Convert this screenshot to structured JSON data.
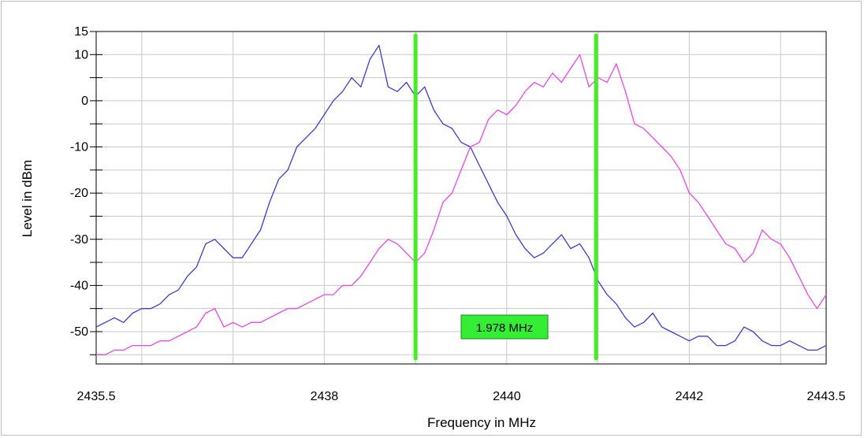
{
  "chart_data": {
    "type": "line",
    "xlabel": "Frequency in MHz",
    "ylabel": "Level in dBm",
    "xlim": [
      2435.5,
      2443.5
    ],
    "ylim": [
      -57,
      15
    ],
    "x_ticks": [
      2435.5,
      2438,
      2440,
      2442,
      2443.5
    ],
    "x_tick_labels": [
      "2435.5",
      "2438",
      "2440",
      "2442",
      "2443.5"
    ],
    "x_grid": [
      2435.5,
      2436,
      2437,
      2438,
      2439,
      2440,
      2441,
      2442,
      2443,
      2443.5
    ],
    "y_ticks": [
      15,
      10,
      0,
      -10,
      -20,
      -30,
      -40,
      -50
    ],
    "y_tick_labels": [
      "15",
      "10",
      "0",
      "-10",
      "-20",
      "-30",
      "-40",
      "-50"
    ],
    "y_grid": [
      15,
      10,
      5,
      0,
      -5,
      -10,
      -15,
      -20,
      -25,
      -30,
      -35,
      -40,
      -45,
      -50,
      -55
    ],
    "grid": true,
    "colors": {
      "series1": "#3a3ad8",
      "series2": "#ee44ee",
      "markers": "#44ee22",
      "label_bg": "#33ee33"
    },
    "markers": [
      2439.0,
      2440.978
    ],
    "annotation": "1.978 MHz",
    "series": [
      {
        "x": [
          2435.5,
          2435.6,
          2435.7,
          2435.8,
          2435.9,
          2436.0,
          2436.1,
          2436.2,
          2436.3,
          2436.4,
          2436.5,
          2436.6,
          2436.7,
          2436.8,
          2436.9,
          2437.0,
          2437.1,
          2437.2,
          2437.3,
          2437.4,
          2437.5,
          2437.6,
          2437.7,
          2437.8,
          2437.9,
          2438.0,
          2438.1,
          2438.2,
          2438.3,
          2438.4,
          2438.5,
          2438.6,
          2438.7,
          2438.8,
          2438.9,
          2439.0,
          2439.1,
          2439.2,
          2439.3,
          2439.4,
          2439.5,
          2439.6,
          2439.7,
          2439.8,
          2439.9,
          2440.0,
          2440.1,
          2440.2,
          2440.3,
          2440.4,
          2440.5,
          2440.6,
          2440.7,
          2440.8,
          2440.9,
          2441.0,
          2441.1,
          2441.2,
          2441.3,
          2441.4,
          2441.5,
          2441.6,
          2441.7,
          2441.8,
          2441.9,
          2442.0,
          2442.1,
          2442.2,
          2442.3,
          2442.4,
          2442.5,
          2442.6,
          2442.7,
          2442.8,
          2442.9,
          2443.0,
          2443.1,
          2443.2,
          2443.3,
          2443.4,
          2443.5
        ],
        "values": [
          -49,
          -48,
          -47,
          -48,
          -46,
          -45,
          -45,
          -44,
          -42,
          -41,
          -38,
          -36,
          -31,
          -30,
          -32,
          -34,
          -34,
          -31,
          -28,
          -22,
          -17,
          -15,
          -10,
          -8,
          -6,
          -3,
          0,
          2,
          5,
          3,
          9,
          12,
          3,
          2,
          4,
          1,
          3,
          -2,
          -5,
          -6,
          -9,
          -10,
          -14,
          -18,
          -22,
          -25,
          -29,
          -32,
          -34,
          -33,
          -31,
          -29,
          -32,
          -31,
          -34,
          -39,
          -42,
          -44,
          -47,
          -49,
          -48,
          -46,
          -49,
          -50,
          -51,
          -52,
          -51,
          -51,
          -53,
          -53,
          -52,
          -49,
          -50,
          -52,
          -53,
          -53,
          -52,
          -53,
          -54,
          -54,
          -53
        ]
      },
      {
        "x": [
          2435.5,
          2435.6,
          2435.7,
          2435.8,
          2435.9,
          2436.0,
          2436.1,
          2436.2,
          2436.3,
          2436.4,
          2436.5,
          2436.6,
          2436.7,
          2436.8,
          2436.9,
          2437.0,
          2437.1,
          2437.2,
          2437.3,
          2437.4,
          2437.5,
          2437.6,
          2437.7,
          2437.8,
          2437.9,
          2438.0,
          2438.1,
          2438.2,
          2438.3,
          2438.4,
          2438.5,
          2438.6,
          2438.7,
          2438.8,
          2438.9,
          2439.0,
          2439.1,
          2439.2,
          2439.3,
          2439.4,
          2439.5,
          2439.6,
          2439.7,
          2439.8,
          2439.9,
          2440.0,
          2440.1,
          2440.2,
          2440.3,
          2440.4,
          2440.5,
          2440.6,
          2440.7,
          2440.8,
          2440.9,
          2441.0,
          2441.1,
          2441.2,
          2441.3,
          2441.4,
          2441.5,
          2441.6,
          2441.7,
          2441.8,
          2441.9,
          2442.0,
          2442.1,
          2442.2,
          2442.3,
          2442.4,
          2442.5,
          2442.6,
          2442.7,
          2442.8,
          2442.9,
          2443.0,
          2443.1,
          2443.2,
          2443.3,
          2443.4,
          2443.5
        ],
        "values": [
          -55,
          -55,
          -54,
          -54,
          -53,
          -53,
          -53,
          -52,
          -52,
          -51,
          -50,
          -49,
          -46,
          -45,
          -49,
          -48,
          -49,
          -48,
          -48,
          -47,
          -46,
          -45,
          -45,
          -44,
          -43,
          -42,
          -42,
          -40,
          -40,
          -38,
          -35,
          -32,
          -30,
          -31,
          -33,
          -35,
          -33,
          -28,
          -22,
          -20,
          -15,
          -10,
          -9,
          -4,
          -2,
          -3,
          -1,
          2,
          4,
          3,
          6,
          4,
          7,
          10,
          3,
          5,
          4,
          8,
          2,
          -5,
          -6,
          -8,
          -10,
          -12,
          -15,
          -20,
          -22,
          -25,
          -28,
          -31,
          -32,
          -35,
          -33,
          -28,
          -30,
          -31,
          -34,
          -38,
          -42,
          -45,
          -42
        ]
      }
    ]
  }
}
